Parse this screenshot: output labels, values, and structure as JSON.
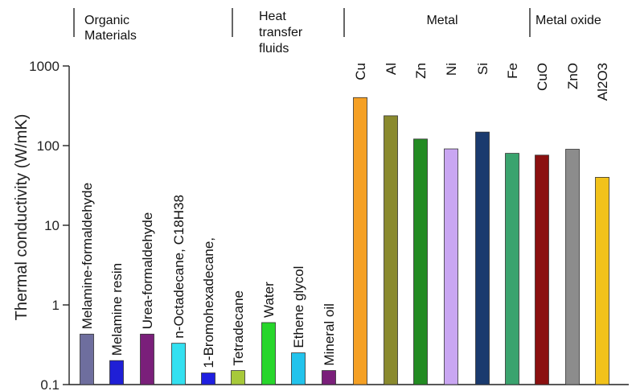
{
  "chart_data": {
    "type": "bar",
    "title": "",
    "xlabel": "",
    "ylabel": "Thermal conductivity (W/mK)",
    "yscale": "log",
    "ylim": [
      0.1,
      1000
    ],
    "yticks": [
      "0.1",
      "1",
      "10",
      "100",
      "1000"
    ],
    "grid": false,
    "groups": [
      {
        "label_lines": [
          "Organic",
          "Materials"
        ],
        "members": 6
      },
      {
        "label_lines": [
          "Heat",
          "transfer",
          "fluids"
        ],
        "members": 3
      },
      {
        "label_lines": [
          "Metal"
        ],
        "members": 6
      },
      {
        "label_lines": [
          "Metal oxide"
        ],
        "members": 3
      }
    ],
    "bars": [
      {
        "label": "Melamine-formaldehyde",
        "value": 0.43,
        "color": "#6e6e9e"
      },
      {
        "label": "Melamine resin",
        "value": 0.2,
        "color": "#1f1fd6"
      },
      {
        "label": "Urea-formaldehyde",
        "value": 0.43,
        "color": "#7a1f7a"
      },
      {
        "label": "n-Octadecane, C18H38",
        "value": 0.33,
        "color": "#33e0f0"
      },
      {
        "label": "1-Bromohexadecane,",
        "value": 0.14,
        "color": "#1f1fe0"
      },
      {
        "label": "Tetradecane",
        "value": 0.15,
        "color": "#a7c93a"
      },
      {
        "label": "Water",
        "value": 0.6,
        "color": "#27d62b"
      },
      {
        "label": "Ethene glycol",
        "value": 0.25,
        "color": "#22c3ec"
      },
      {
        "label": "Mineral oil",
        "value": 0.15,
        "color": "#7a1f7a"
      },
      {
        "label": "Cu",
        "value": 401,
        "color": "#f5a024"
      },
      {
        "label": "Al",
        "value": 237,
        "color": "#8a8a2e"
      },
      {
        "label": "Zn",
        "value": 121,
        "color": "#228b22"
      },
      {
        "label": "Ni",
        "value": 91,
        "color": "#c9a6f2"
      },
      {
        "label": "Si",
        "value": 148,
        "color": "#1a3a6e"
      },
      {
        "label": "Fe",
        "value": 80,
        "color": "#3aa36e"
      },
      {
        "label": "CuO",
        "value": 76,
        "color": "#8b1010"
      },
      {
        "label": "ZnO",
        "value": 90,
        "color": "#8c8c8c"
      },
      {
        "label": "Al2O3",
        "value": 40,
        "color": "#f2c21a"
      }
    ]
  }
}
